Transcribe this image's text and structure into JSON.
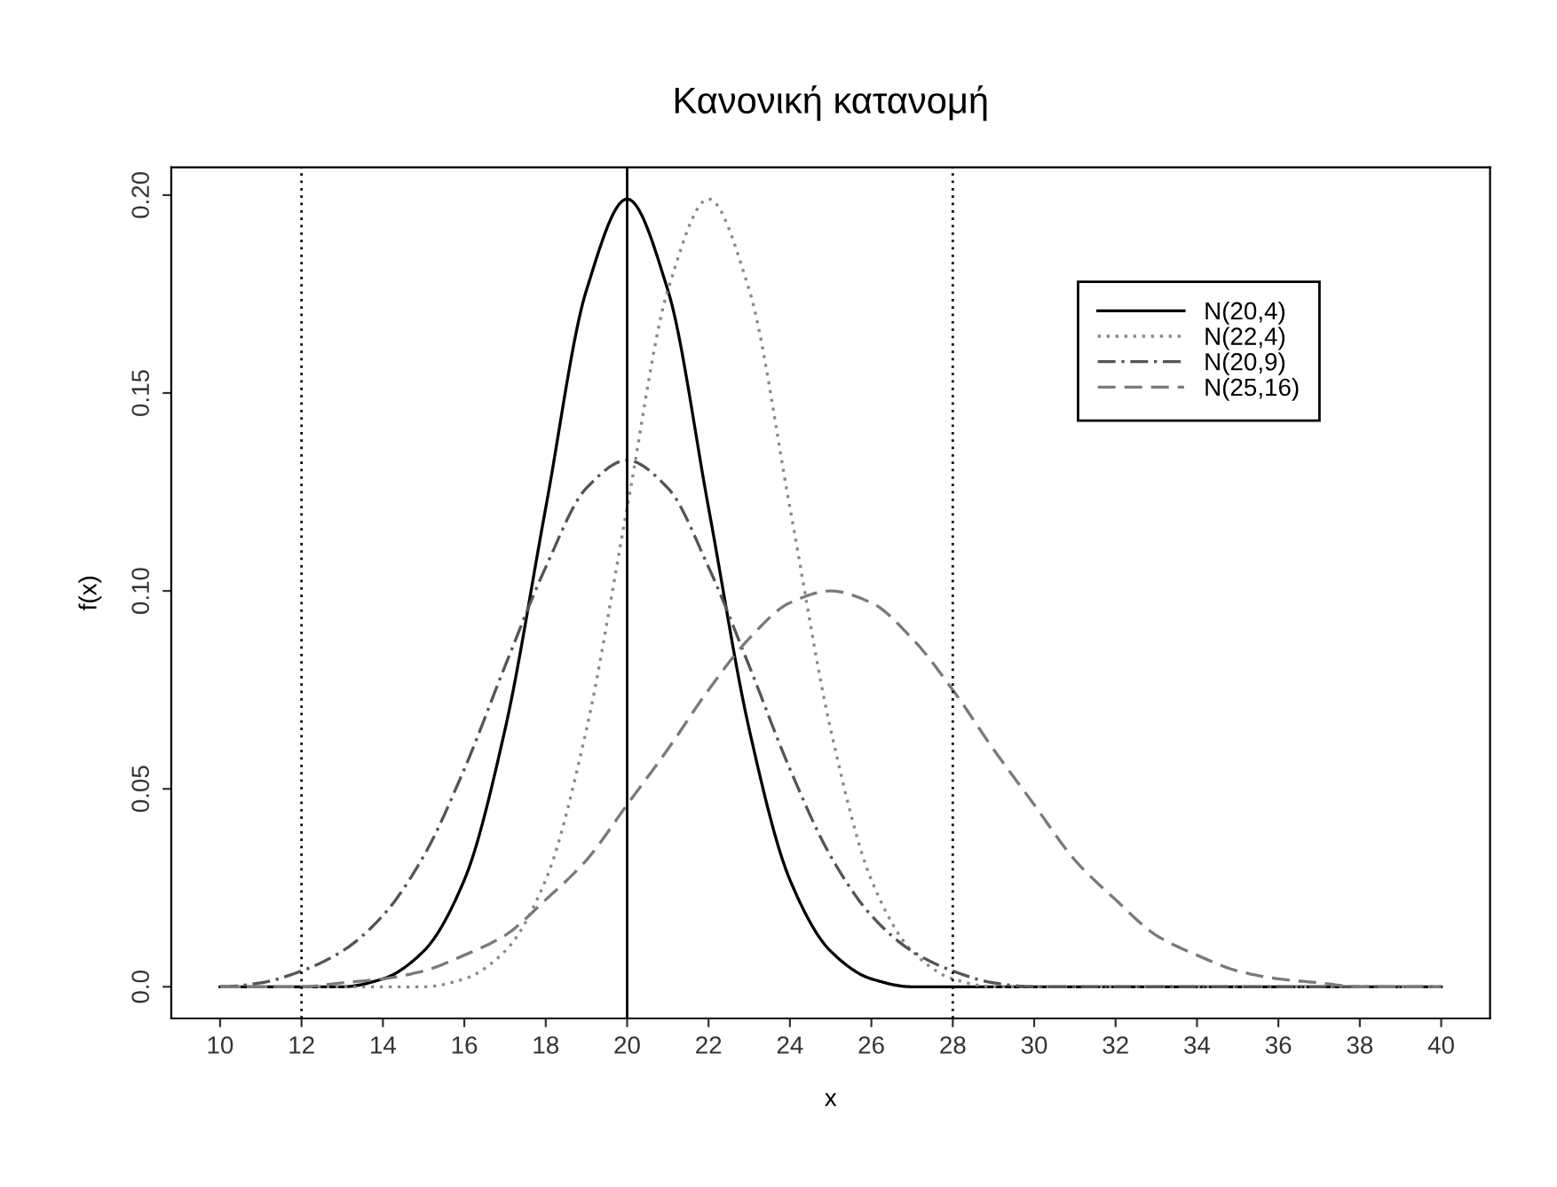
{
  "chart_data": {
    "type": "line",
    "title": "Κανονική κατανομή",
    "xlabel": "x",
    "ylabel": "f(x)",
    "x": [
      10,
      11,
      12,
      13,
      14,
      15,
      16,
      17,
      18,
      19,
      20,
      21,
      22,
      23,
      24,
      25,
      26,
      27,
      28,
      29,
      30,
      31,
      32,
      33,
      34,
      35,
      36,
      37,
      38,
      39,
      40
    ],
    "series": [
      {
        "name": "N(20,4)",
        "color": "#000000",
        "line_style": "solid",
        "values": [
          0,
          0,
          0,
          0,
          0.002,
          0.009,
          0.027,
          0.065,
          0.121,
          0.176,
          0.199,
          0.176,
          0.121,
          0.065,
          0.027,
          0.009,
          0.002,
          0,
          0,
          0,
          0,
          0,
          0,
          0,
          0,
          0,
          0,
          0,
          0,
          0,
          0
        ]
      },
      {
        "name": "N(22,4)",
        "color": "#888888",
        "line_style": "dotted",
        "values": [
          0,
          0,
          0,
          0,
          0,
          0,
          0.002,
          0.009,
          0.027,
          0.065,
          0.121,
          0.176,
          0.199,
          0.176,
          0.121,
          0.065,
          0.027,
          0.009,
          0.002,
          0,
          0,
          0,
          0,
          0,
          0,
          0,
          0,
          0,
          0,
          0,
          0
        ]
      },
      {
        "name": "N(20,9)",
        "color": "#555555",
        "line_style": "dashdot",
        "values": [
          0,
          0.001,
          0.004,
          0.009,
          0.018,
          0.033,
          0.055,
          0.081,
          0.106,
          0.126,
          0.133,
          0.126,
          0.106,
          0.081,
          0.055,
          0.033,
          0.018,
          0.009,
          0.004,
          0.001,
          0,
          0,
          0,
          0,
          0,
          0,
          0,
          0,
          0,
          0,
          0
        ]
      },
      {
        "name": "N(25,16)",
        "color": "#7a7a7a",
        "line_style": "dashed",
        "values": [
          0,
          0,
          0,
          0.001,
          0.002,
          0.004,
          0.008,
          0.013,
          0.022,
          0.032,
          0.046,
          0.06,
          0.075,
          0.088,
          0.097,
          0.1,
          0.097,
          0.088,
          0.075,
          0.06,
          0.046,
          0.032,
          0.022,
          0.013,
          0.008,
          0.004,
          0.002,
          0.001,
          0,
          0,
          0
        ]
      }
    ],
    "ref_lines": [
      {
        "axis": "x",
        "value": 12,
        "color": "#000000",
        "line_style": "dotted"
      },
      {
        "axis": "x",
        "value": 20,
        "color": "#000000",
        "line_style": "solid"
      },
      {
        "axis": "x",
        "value": 28,
        "color": "#000000",
        "line_style": "dotted"
      }
    ],
    "xlim": [
      8.8,
      41.2
    ],
    "ylim": [
      -0.008,
      0.207
    ],
    "xticks": [
      10,
      12,
      14,
      16,
      18,
      20,
      22,
      24,
      26,
      28,
      30,
      32,
      34,
      36,
      38,
      40
    ],
    "yticks": [
      {
        "value": 0,
        "label": "0.0"
      },
      0.05,
      {
        "value": 0.1,
        "label": "0.10"
      },
      0.15,
      {
        "value": 0.2,
        "label": "0.20"
      }
    ],
    "legend": "top right",
    "grid": false,
    "marker": "none"
  }
}
